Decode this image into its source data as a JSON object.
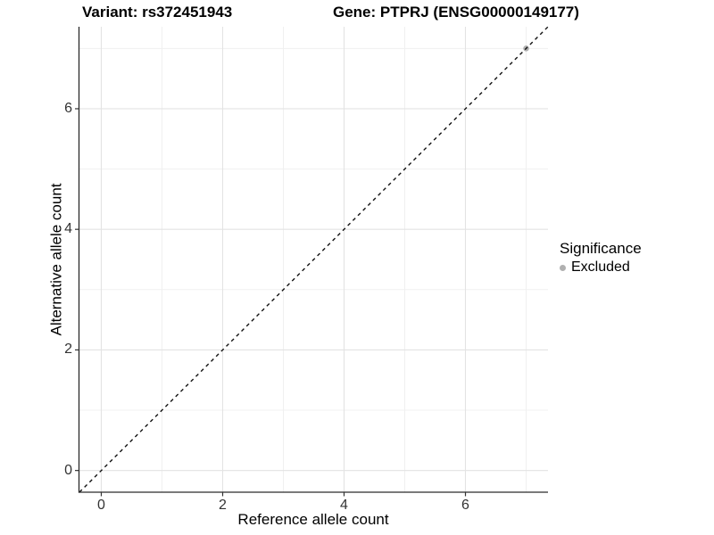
{
  "title": {
    "variant": "Variant: rs372451943",
    "gene": "Gene: PTPRJ (ENSG00000149177)"
  },
  "chart_data": {
    "type": "scatter",
    "title": "Variant: rs372451943   Gene: PTPRJ (ENSG00000149177)",
    "xlabel": "Reference allele count",
    "ylabel": "Alternative allele count",
    "xlim": [
      -0.36,
      7.36
    ],
    "ylim": [
      -0.36,
      7.36
    ],
    "x_ticks": [
      0,
      2,
      4,
      6
    ],
    "y_ticks": [
      0,
      2,
      4,
      6
    ],
    "minor_ticks": [
      1,
      3,
      5,
      7
    ],
    "grid": true,
    "reference_line": {
      "slope": 1,
      "intercept": 0,
      "style": "dashed"
    },
    "series": [
      {
        "name": "Excluded",
        "points": [
          {
            "x": 7,
            "y": 7
          }
        ]
      }
    ],
    "legend": {
      "position": "right",
      "title": "Significance",
      "entries": [
        {
          "label": "Excluded"
        }
      ]
    },
    "colors": {
      "point": "#b0b0b0",
      "grid_major": "#e3e3e3",
      "grid_minor": "#f0f0f0",
      "axis": "#2a2a2a",
      "tick": "#333333",
      "reference_line": "#111111",
      "text": "#000000",
      "tick_text": "#333333"
    }
  }
}
